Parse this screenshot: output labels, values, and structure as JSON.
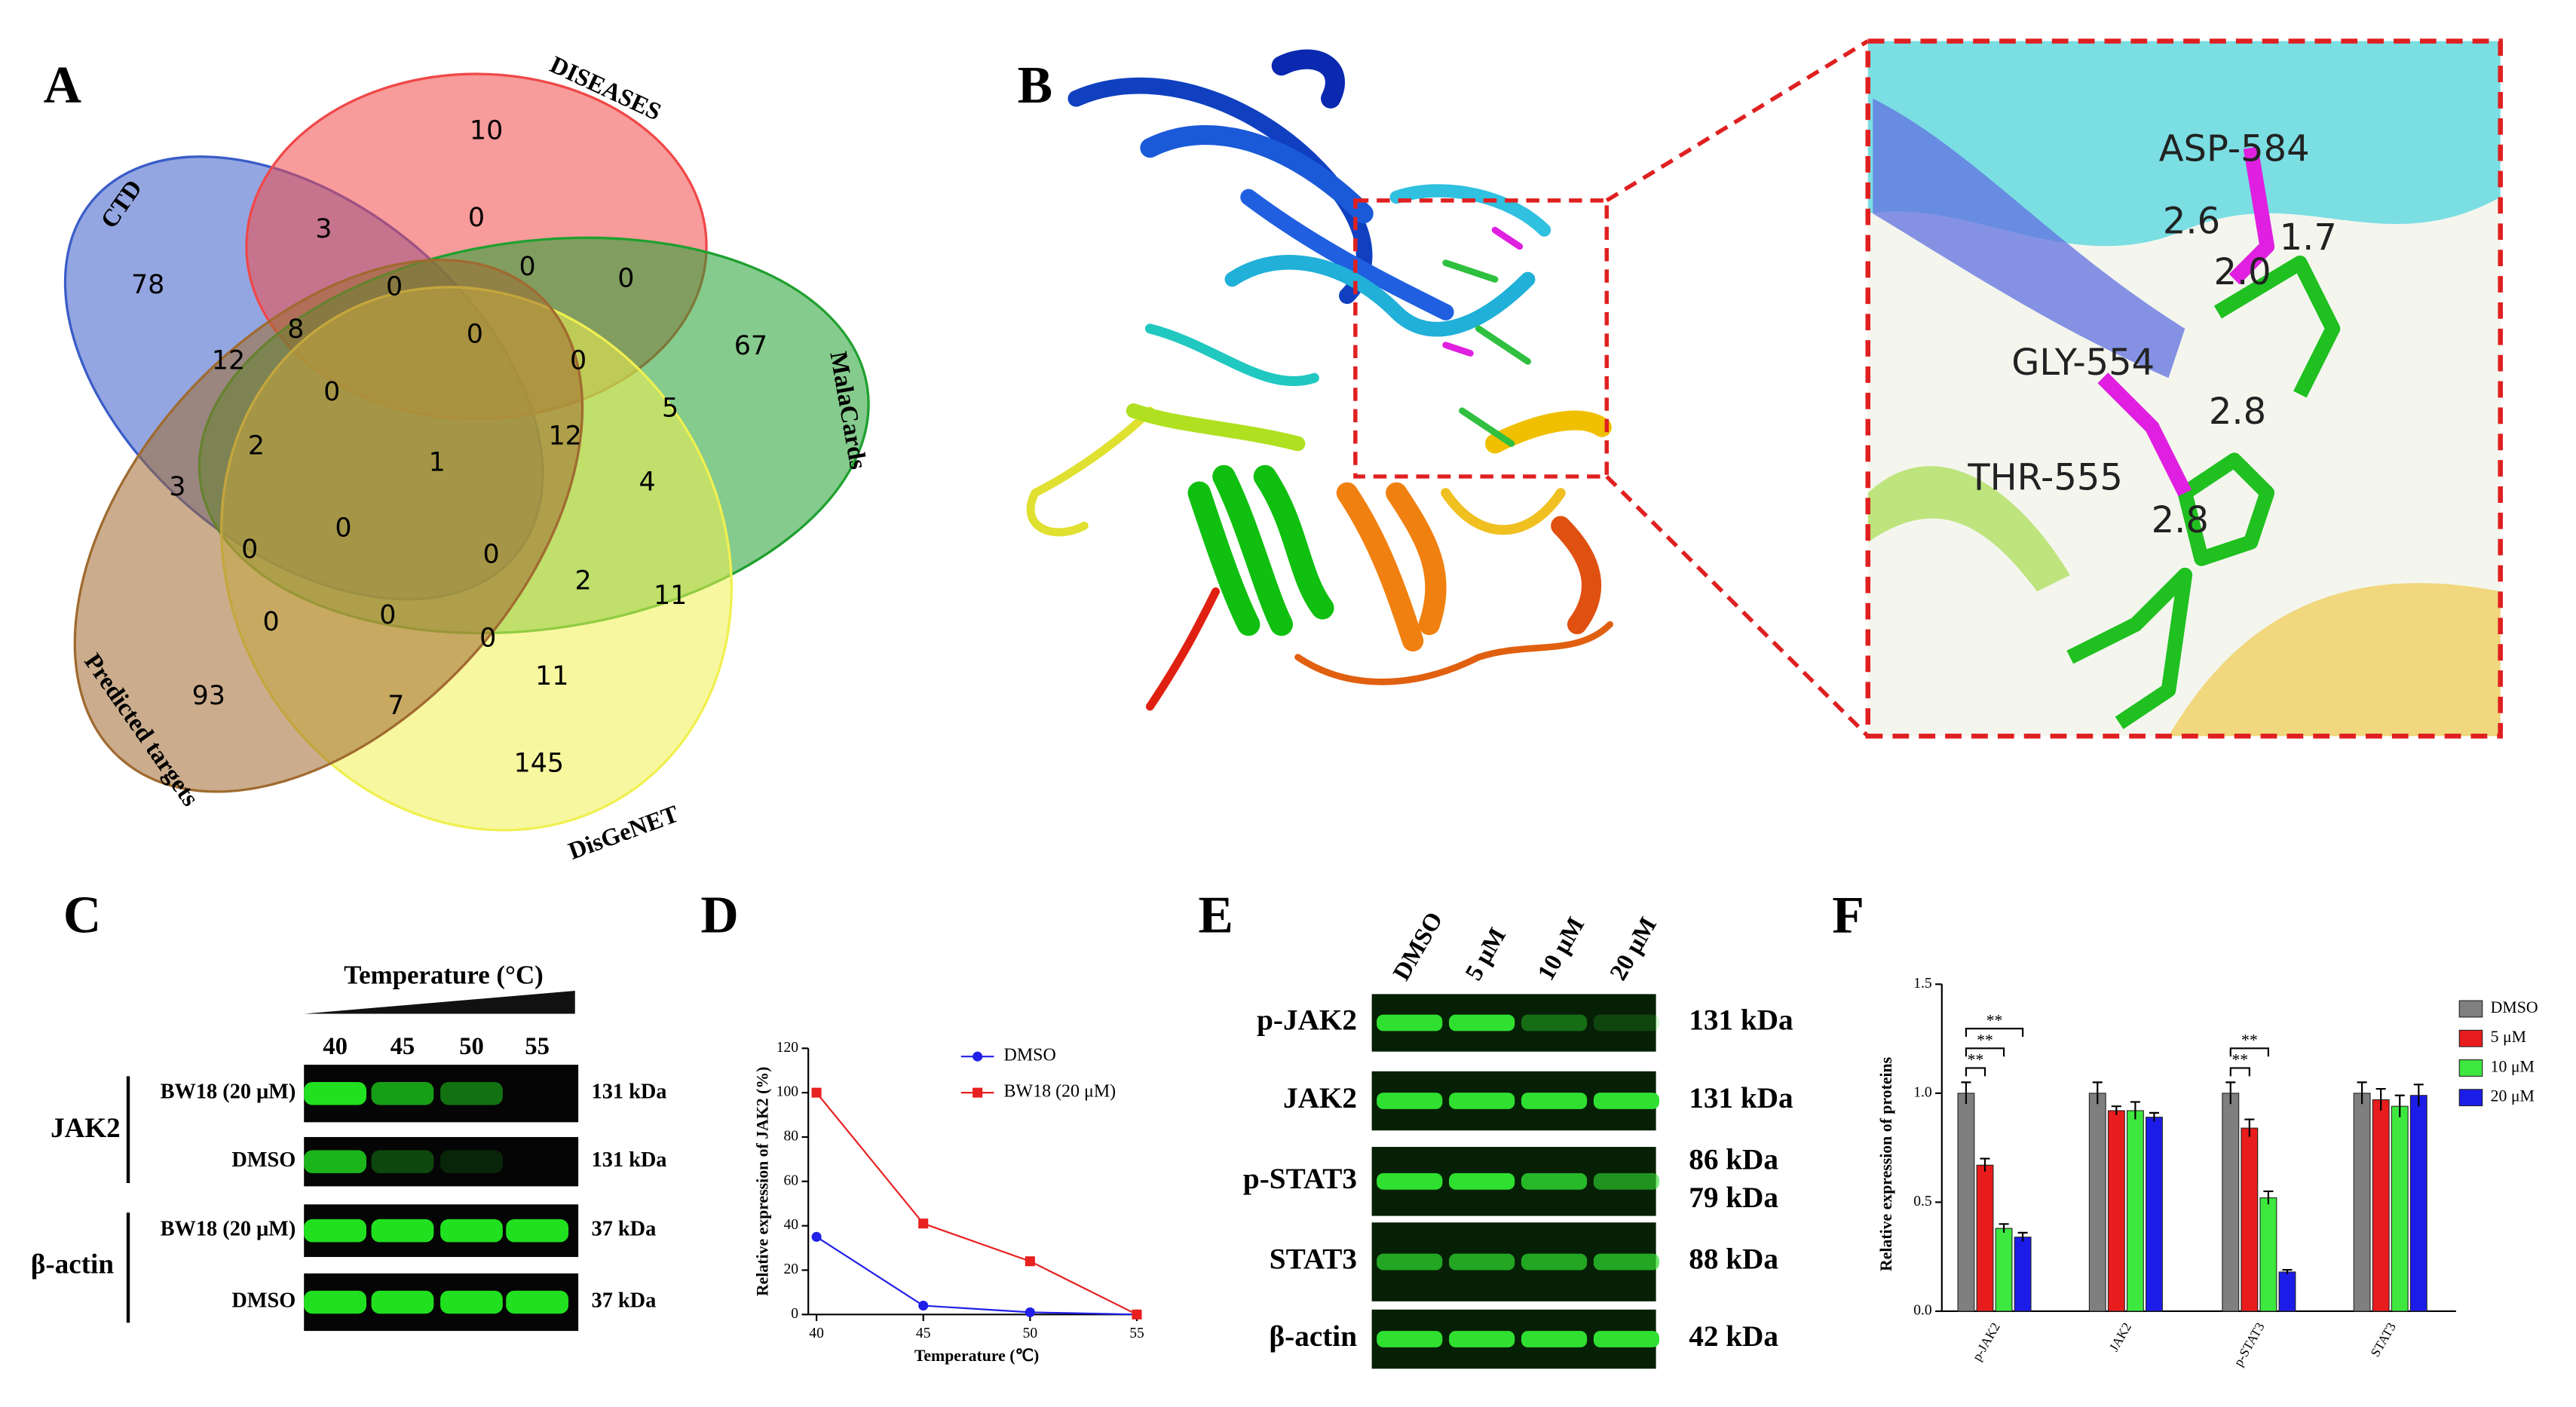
{
  "panel_labels": [
    "A",
    "B",
    "C",
    "D",
    "E",
    "F"
  ],
  "venn": {
    "sets": [
      "CTD",
      "DISEASES",
      "MalaCards",
      "DisGeNET",
      "Predicted targets"
    ],
    "counts": [
      10,
      3,
      0,
      0,
      0,
      78,
      0,
      0,
      8,
      12,
      0,
      67,
      0,
      5,
      2,
      1,
      12,
      4,
      3,
      0,
      0,
      0,
      2,
      11,
      0,
      0,
      0,
      11,
      93,
      7,
      145
    ]
  },
  "structure": {
    "residues": [
      "ASP-584",
      "GLY-554",
      "THR-555"
    ],
    "distances": [
      "2.6",
      "1.7",
      "2.0",
      "2.8",
      "2.8"
    ]
  },
  "blot_c": {
    "title": "Temperature (°C)",
    "temperatures": [
      "40",
      "45",
      "50",
      "55"
    ],
    "groups": [
      "JAK2",
      "β-actin"
    ],
    "rows": [
      "BW18 (20 μM)",
      "DMSO",
      "BW18 (20 μM)",
      "DMSO"
    ],
    "sizes": [
      "131 kDa",
      "131 kDa",
      "37 kDa",
      "37 kDa"
    ]
  },
  "blot_e": {
    "lanes": [
      "DMSO",
      "5 μM",
      "10 μM",
      "20 μM"
    ],
    "rows": [
      "p-JAK2",
      "JAK2",
      "p-STAT3",
      "STAT3",
      "β-actin"
    ],
    "sizes": [
      [
        "131 kDa"
      ],
      [
        "131 kDa"
      ],
      [
        "86 kDa",
        "79 kDa"
      ],
      [
        "88 kDa"
      ],
      [
        "42 kDa"
      ]
    ]
  },
  "chart_data": [
    {
      "type": "line",
      "xlabel": "Temperature (℃)",
      "ylabel": "Relative expression of JAK2 (%)",
      "x": [
        40,
        45,
        50,
        55
      ],
      "xlim": [
        40,
        55
      ],
      "xticks": [
        40,
        45,
        50,
        55
      ],
      "ylim": [
        0,
        120
      ],
      "yticks": [
        0,
        20,
        40,
        60,
        80,
        100,
        120
      ],
      "legend": "upper right",
      "series": [
        {
          "name": "DMSO",
          "color": "#2020e8",
          "values": [
            35,
            4,
            1,
            0
          ]
        },
        {
          "name": "BW18 (20 μM)",
          "color": "#e82020",
          "values": [
            100,
            41,
            24,
            0
          ]
        }
      ]
    },
    {
      "type": "bar",
      "ylabel": "Relative expression of proteins",
      "categories": [
        "p-JAK2",
        "JAK2",
        "p-STAT3",
        "STAT3"
      ],
      "ylim": [
        0,
        1.5
      ],
      "yticks": [
        {
          "value": 0,
          "label": "0.0"
        },
        0.5,
        {
          "value": 1,
          "label": "1.0"
        },
        1.5
      ],
      "legend": "upper right",
      "series": [
        {
          "name": "DMSO",
          "color": "#7f7f7f",
          "values": [
            1.0,
            1.0,
            1.0,
            1.0
          ],
          "errors": [
            0.05,
            0.05,
            0.05,
            0.05
          ]
        },
        {
          "name": "5 μM",
          "color": "#e81c1c",
          "values": [
            0.67,
            0.92,
            0.84,
            0.97
          ],
          "errors": [
            0.03,
            0.02,
            0.04,
            0.05
          ]
        },
        {
          "name": "10 μM",
          "color": "#3ee83e",
          "values": [
            0.38,
            0.92,
            0.52,
            0.94
          ],
          "errors": [
            0.02,
            0.04,
            0.03,
            0.05
          ]
        },
        {
          "name": "20 μM",
          "color": "#1c1ce8",
          "values": [
            0.34,
            0.89,
            0.18,
            0.99
          ],
          "errors": [
            0.02,
            0.02,
            0.01,
            0.05
          ]
        }
      ],
      "annotations": [
        "**",
        "**",
        "**",
        "**",
        "**"
      ]
    }
  ]
}
